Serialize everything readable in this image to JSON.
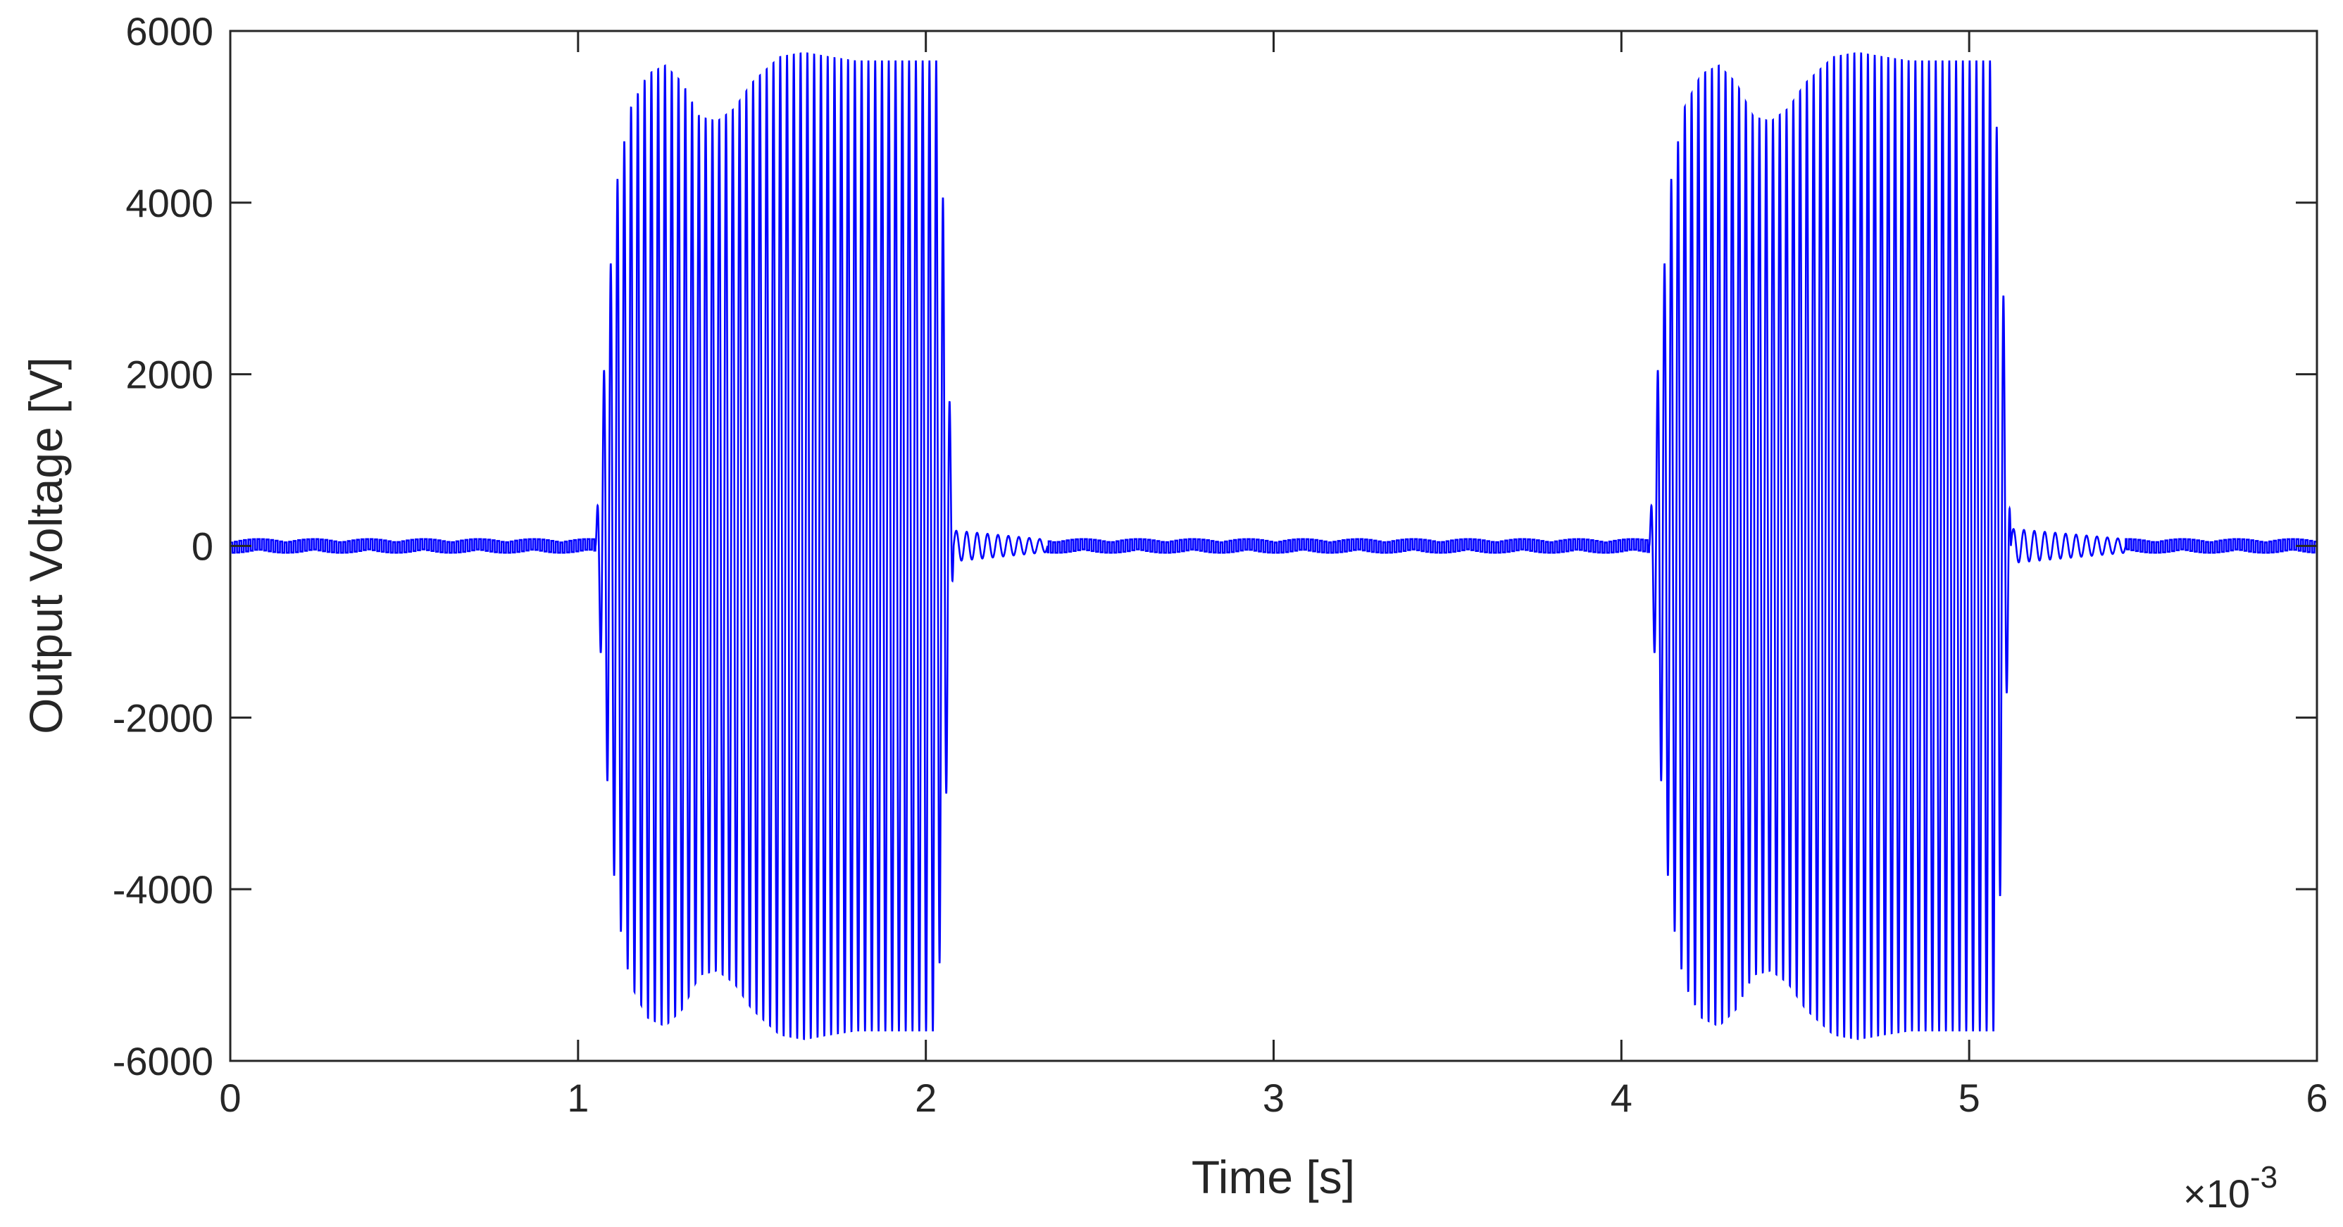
{
  "chart_data": {
    "type": "line",
    "title": "",
    "xlabel": "Time [s]",
    "ylabel": "Output Voltage [V]",
    "x_multiplier_base": "×10",
    "x_multiplier_exponent": "-3",
    "xlim": [
      0,
      6
    ],
    "ylim": [
      -6000,
      6000
    ],
    "x_ticks": [
      0,
      1,
      2,
      3,
      4,
      5,
      6
    ],
    "x_tick_labels": [
      "0",
      "1",
      "2",
      "3",
      "4",
      "5",
      "6"
    ],
    "y_ticks": [
      -6000,
      -4000,
      -2000,
      0,
      2000,
      4000,
      6000
    ],
    "y_tick_labels": [
      "-6000",
      "-4000",
      "-2000",
      "0",
      "2000",
      "4000",
      "6000"
    ],
    "grid": false,
    "line_color": "#0000ff",
    "series": [
      {
        "bursts": [
          {
            "start": 1.05,
            "end": 2.08,
            "oscillation_period": 0.0195,
            "envelope": [
              [
                1.05,
                0
              ],
              [
                1.08,
                2500
              ],
              [
                1.11,
                4200
              ],
              [
                1.15,
                5100
              ],
              [
                1.2,
                5500
              ],
              [
                1.25,
                5600
              ],
              [
                1.3,
                5400
              ],
              [
                1.35,
                5000
              ],
              [
                1.4,
                4950
              ],
              [
                1.45,
                5100
              ],
              [
                1.5,
                5400
              ],
              [
                1.58,
                5700
              ],
              [
                1.65,
                5750
              ],
              [
                1.72,
                5700
              ],
              [
                1.8,
                5650
              ],
              [
                2.03,
                5650
              ],
              [
                2.05,
                4000
              ],
              [
                2.07,
                1500
              ],
              [
                2.08,
                0
              ]
            ]
          },
          {
            "start": 4.08,
            "end": 5.12,
            "oscillation_period": 0.0195,
            "envelope": [
              [
                4.08,
                0
              ],
              [
                4.11,
                2500
              ],
              [
                4.14,
                4200
              ],
              [
                4.18,
                5100
              ],
              [
                4.23,
                5500
              ],
              [
                4.28,
                5600
              ],
              [
                4.33,
                5400
              ],
              [
                4.38,
                5000
              ],
              [
                4.43,
                4950
              ],
              [
                4.48,
                5100
              ],
              [
                4.53,
                5400
              ],
              [
                4.61,
                5700
              ],
              [
                4.68,
                5750
              ],
              [
                4.75,
                5700
              ],
              [
                4.83,
                5650
              ],
              [
                5.07,
                5650
              ],
              [
                5.09,
                4000
              ],
              [
                5.11,
                1500
              ],
              [
                5.12,
                0
              ]
            ]
          }
        ],
        "ringdowns": [
          {
            "start": 2.08,
            "end": 2.35,
            "amplitude": 180,
            "period": 0.03
          },
          {
            "start": 5.12,
            "end": 5.45,
            "amplitude": 200,
            "period": 0.03
          }
        ],
        "baseline_ripple_amplitude": 80
      }
    ]
  }
}
